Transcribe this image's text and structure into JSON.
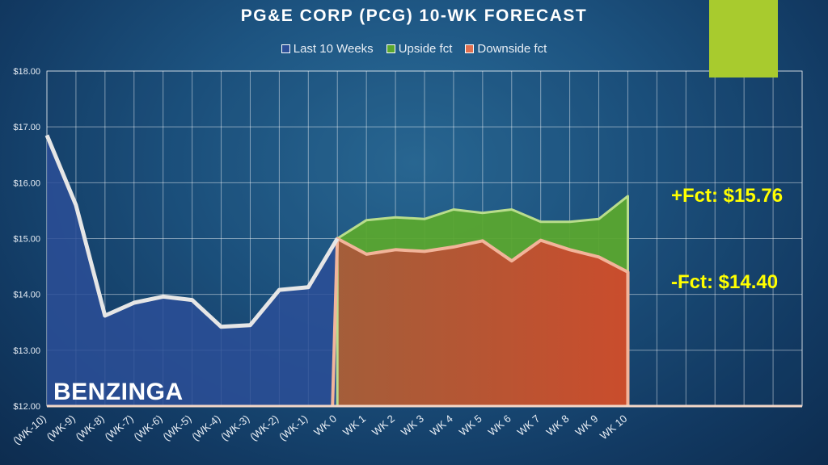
{
  "title": "PG&E CORP (PCG) 10-WK FORECAST",
  "brand": "BENZINGA",
  "legend": [
    {
      "label": "Last 10 Weeks",
      "color": "#2c4f98"
    },
    {
      "label": "Upside fct",
      "color": "#5aa72f"
    },
    {
      "label": "Downside fct",
      "color": "#e07050"
    }
  ],
  "annotations": {
    "upside": "+Fct: $15.76",
    "downside": "-Fct: $14.40"
  },
  "colors": {
    "accent": "#a8cb2e",
    "history_fill": "#2c4f98",
    "upside_fill": "#5aa72f",
    "downside_fill": "#c95a3a",
    "line": "#e6e6e6",
    "forecast_line": "#f2b49a",
    "annotation_text": "#ffff00"
  },
  "chart_data": {
    "type": "area",
    "title": "PG&E CORP (PCG) 10-WK FORECAST",
    "categories": [
      "(WK-10)",
      "(WK-9)",
      "(WK-8)",
      "(WK-7)",
      "(WK-6)",
      "(WK-5)",
      "(WK-4)",
      "(WK-3)",
      "(WK-2)",
      "(WK-1)",
      "WK 0",
      "WK 1",
      "WK 2",
      "WK 3",
      "WK 4",
      "WK 5",
      "WK 6",
      "WK 7",
      "WK 8",
      "WK 9",
      "WK 10"
    ],
    "ylim": [
      12,
      18
    ],
    "yticks": [
      "$12.00",
      "$13.00",
      "$14.00",
      "$15.00",
      "$16.00",
      "$17.00",
      "$18.00"
    ],
    "total_grid_columns": 26,
    "grid": true,
    "legend_position": "top",
    "series": [
      {
        "name": "Last 10 Weeks",
        "x": [
          0,
          1,
          2,
          3,
          4,
          5,
          6,
          7,
          8,
          9,
          10
        ],
        "values": [
          16.85,
          15.6,
          13.62,
          13.85,
          13.96,
          13.9,
          13.42,
          13.45,
          14.08,
          14.13,
          15.0
        ]
      },
      {
        "name": "Upside fct",
        "x": [
          10,
          11,
          12,
          13,
          14,
          15,
          16,
          17,
          18,
          19,
          20
        ],
        "values": [
          15.0,
          15.33,
          15.38,
          15.35,
          15.52,
          15.46,
          15.52,
          15.3,
          15.3,
          15.35,
          15.76
        ]
      },
      {
        "name": "Downside fct",
        "x": [
          10,
          11,
          12,
          13,
          14,
          15,
          16,
          17,
          18,
          19,
          20
        ],
        "values": [
          15.0,
          14.72,
          14.8,
          14.77,
          14.85,
          14.96,
          14.6,
          14.97,
          14.8,
          14.67,
          14.4
        ]
      }
    ]
  }
}
